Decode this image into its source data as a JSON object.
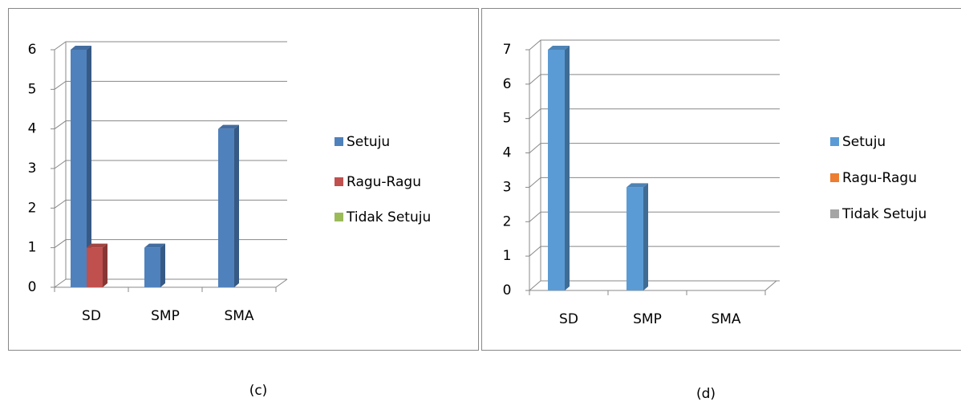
{
  "chart_data": [
    {
      "type": "bar",
      "caption": "(c)",
      "categories": [
        "SD",
        "SMP",
        "SMA"
      ],
      "series": [
        {
          "name": "Setuju",
          "color": "#4f81bd",
          "values": [
            6,
            1,
            4
          ]
        },
        {
          "name": "Ragu-Ragu",
          "color": "#c0504d",
          "values": [
            1,
            0,
            0
          ]
        },
        {
          "name": "Tidak Setuju",
          "color": "#9bbb59",
          "values": [
            0,
            0,
            0
          ]
        }
      ],
      "ylim": [
        0,
        6
      ],
      "yticks": [
        0,
        1,
        2,
        3,
        4,
        5,
        6
      ],
      "grid": true
    },
    {
      "type": "bar",
      "caption": "(d)",
      "categories": [
        "SD",
        "SMP",
        "SMA"
      ],
      "series": [
        {
          "name": "Setuju",
          "color": "#5b9bd5",
          "values": [
            7,
            3,
            0
          ]
        },
        {
          "name": "Ragu-Ragu",
          "color": "#ed7d31",
          "values": [
            0,
            0,
            0
          ]
        },
        {
          "name": "Tidak Setuju",
          "color": "#a5a5a5",
          "values": [
            0,
            0,
            0
          ]
        }
      ],
      "ylim": [
        0,
        7
      ],
      "yticks": [
        0,
        1,
        2,
        3,
        4,
        5,
        6,
        7
      ],
      "grid": true
    }
  ]
}
